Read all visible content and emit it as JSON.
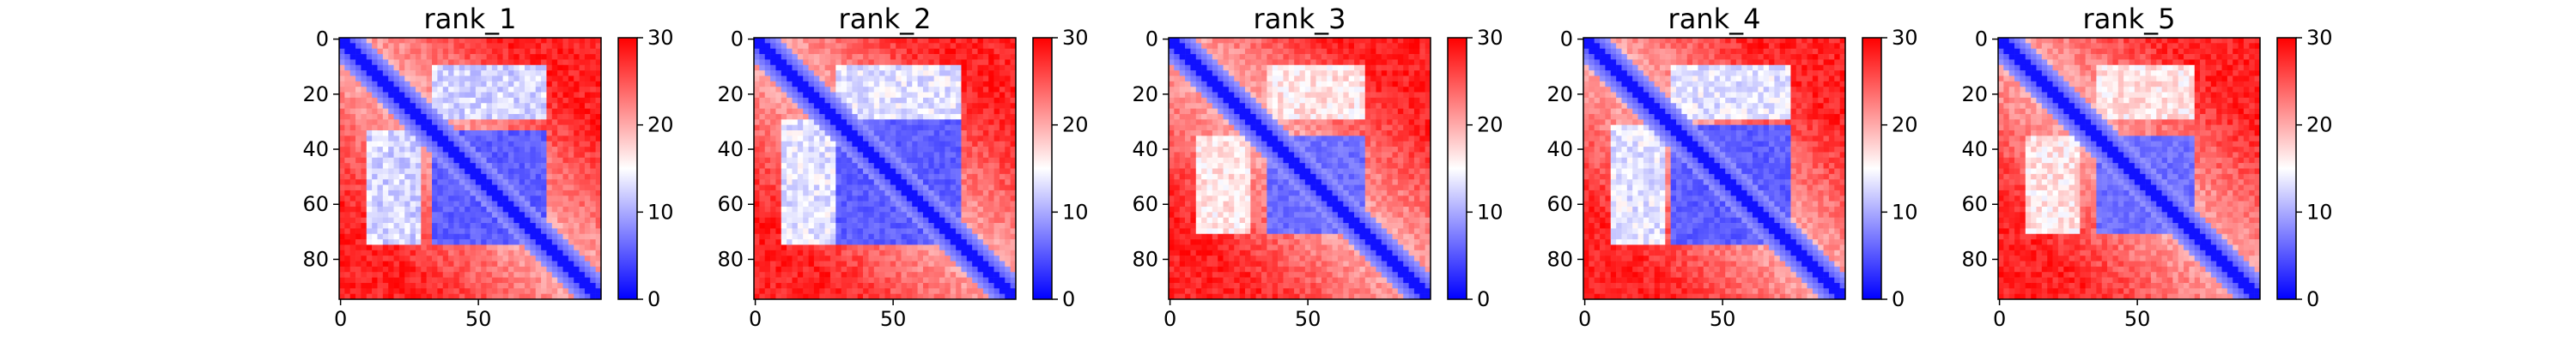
{
  "chart_data": [
    {
      "type": "heatmap",
      "title": "rank_1",
      "x_ticks": [
        0,
        50
      ],
      "y_ticks": [
        0,
        20,
        40,
        60,
        80
      ],
      "colorbar": {
        "ticks": [
          0,
          10,
          20,
          30
        ],
        "range": [
          0,
          30
        ],
        "colormap": [
          "#0000ff",
          "#ffffff",
          "#ff0000"
        ]
      },
      "matrix_size": 95,
      "blocks": [
        {
          "range": [
            33,
            75
          ],
          "value": 4
        }
      ],
      "off_block_value": 10
    },
    {
      "type": "heatmap",
      "title": "rank_2",
      "x_ticks": [
        0,
        50
      ],
      "y_ticks": [
        0,
        20,
        40,
        60,
        80
      ],
      "colorbar": {
        "ticks": [
          0,
          10,
          20,
          30
        ],
        "range": [
          0,
          30
        ],
        "colormap": [
          "#0000ff",
          "#ffffff",
          "#ff0000"
        ]
      },
      "matrix_size": 95,
      "blocks": [
        {
          "range": [
            30,
            75
          ],
          "value": 4
        }
      ],
      "off_block_value": 11
    },
    {
      "type": "heatmap",
      "title": "rank_3",
      "x_ticks": [
        0,
        50
      ],
      "y_ticks": [
        0,
        20,
        40,
        60,
        80
      ],
      "colorbar": {
        "ticks": [
          0,
          10,
          20,
          30
        ],
        "range": [
          0,
          30
        ],
        "colormap": [
          "#0000ff",
          "#ffffff",
          "#ff0000"
        ]
      },
      "matrix_size": 95,
      "blocks": [
        {
          "range": [
            35,
            72
          ],
          "value": 5
        }
      ],
      "off_block_value": 14
    },
    {
      "type": "heatmap",
      "title": "rank_4",
      "x_ticks": [
        0,
        50
      ],
      "y_ticks": [
        0,
        20,
        40,
        60,
        80
      ],
      "colorbar": {
        "ticks": [
          0,
          10,
          20,
          30
        ],
        "range": [
          0,
          30
        ],
        "colormap": [
          "#0000ff",
          "#ffffff",
          "#ff0000"
        ]
      },
      "matrix_size": 95,
      "blocks": [
        {
          "range": [
            32,
            75
          ],
          "value": 4
        }
      ],
      "off_block_value": 11
    },
    {
      "type": "heatmap",
      "title": "rank_5",
      "x_ticks": [
        0,
        50
      ],
      "y_ticks": [
        0,
        20,
        40,
        60,
        80
      ],
      "colorbar": {
        "ticks": [
          0,
          10,
          20,
          30
        ],
        "range": [
          0,
          30
        ],
        "colormap": [
          "#0000ff",
          "#ffffff",
          "#ff0000"
        ]
      },
      "matrix_size": 95,
      "blocks": [
        {
          "range": [
            35,
            72
          ],
          "value": 5
        }
      ],
      "off_block_value": 14
    }
  ]
}
